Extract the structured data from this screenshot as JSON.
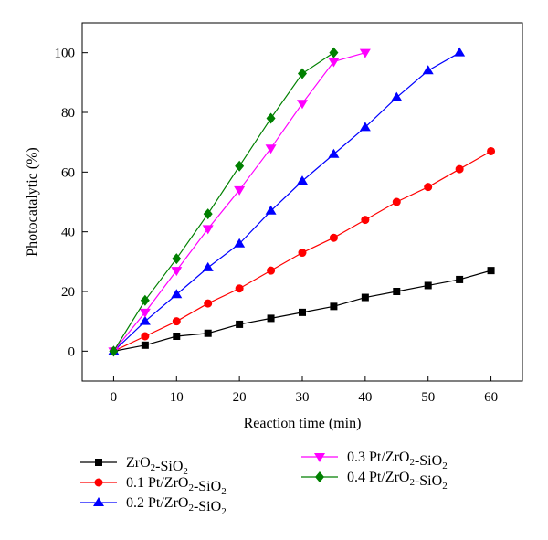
{
  "chart_data": {
    "type": "line",
    "xlabel": "Reaction time (min)",
    "ylabel": "Photocatalytic (%)",
    "xlim": [
      -5,
      65
    ],
    "ylim": [
      -10,
      110
    ],
    "xticks": [
      0,
      10,
      20,
      30,
      40,
      50,
      60
    ],
    "yticks": [
      0,
      20,
      40,
      60,
      80,
      100
    ],
    "grid": false,
    "legend_position": "below",
    "series": [
      {
        "name": "ZrO2-SiO2",
        "label_parts": [
          [
            "ZrO",
            0
          ],
          [
            "2",
            1
          ],
          [
            "-SiO",
            0
          ],
          [
            "2",
            1
          ]
        ],
        "color": "#000000",
        "marker": "square",
        "x": [
          0,
          5,
          10,
          15,
          20,
          25,
          30,
          35,
          40,
          45,
          50,
          55,
          60
        ],
        "y": [
          0,
          2,
          5,
          6,
          9,
          11,
          13,
          15,
          18,
          20,
          22,
          24,
          27
        ]
      },
      {
        "name": "0.1 Pt/ZrO2-SiO2",
        "label_parts": [
          [
            "0.1 Pt/ZrO",
            0
          ],
          [
            "2",
            1
          ],
          [
            "-SiO",
            0
          ],
          [
            "2",
            1
          ]
        ],
        "color": "#ff0000",
        "marker": "circle",
        "x": [
          0,
          5,
          10,
          15,
          20,
          25,
          30,
          35,
          40,
          45,
          50,
          55,
          60
        ],
        "y": [
          0,
          5,
          10,
          16,
          21,
          27,
          33,
          38,
          44,
          50,
          55,
          61,
          67
        ]
      },
      {
        "name": "0.2 Pt/ZrO2-SiO2",
        "label_parts": [
          [
            "0.2 Pt/ZrO",
            0
          ],
          [
            "2",
            1
          ],
          [
            "-SiO",
            0
          ],
          [
            "2",
            1
          ]
        ],
        "color": "#0000ff",
        "marker": "triangle-up",
        "x": [
          0,
          5,
          10,
          15,
          20,
          25,
          30,
          35,
          40,
          45,
          50,
          55
        ],
        "y": [
          0,
          10,
          19,
          28,
          36,
          47,
          57,
          66,
          75,
          85,
          94,
          100
        ]
      },
      {
        "name": "0.3 Pt/ZrO2-SiO2",
        "label_parts": [
          [
            "0.3 Pt/ZrO",
            0
          ],
          [
            "2",
            1
          ],
          [
            "-SiO",
            0
          ],
          [
            "2",
            1
          ]
        ],
        "color": "#ff00ff",
        "marker": "triangle-down",
        "x": [
          0,
          5,
          10,
          15,
          20,
          25,
          30,
          35,
          40
        ],
        "y": [
          0,
          13,
          27,
          41,
          54,
          68,
          83,
          97,
          100
        ]
      },
      {
        "name": "0.4 Pt/ZrO2-SiO2",
        "label_parts": [
          [
            "0.4 Pt/ZrO",
            0
          ],
          [
            "2",
            1
          ],
          [
            "-SiO",
            0
          ],
          [
            "2",
            1
          ]
        ],
        "color": "#008000",
        "marker": "diamond",
        "x": [
          0,
          5,
          10,
          15,
          20,
          25,
          30,
          35
        ],
        "y": [
          0,
          17,
          31,
          46,
          62,
          78,
          93,
          100
        ]
      }
    ]
  }
}
